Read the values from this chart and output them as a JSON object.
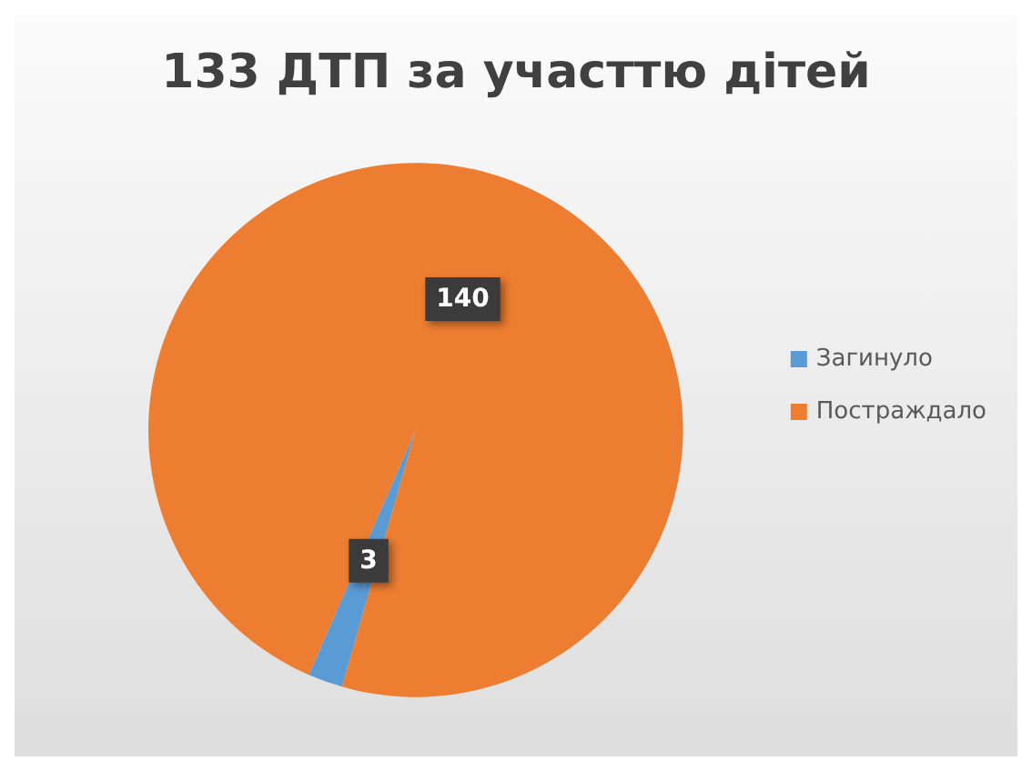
{
  "chart_data": {
    "type": "pie",
    "title": "133 ДТП за участтю дітей",
    "categories": [
      "Загинуло",
      "Постраждало"
    ],
    "values": [
      3,
      140
    ],
    "colors": [
      "#5b9bd5",
      "#ed7d31"
    ],
    "data_labels": true,
    "legend": "right"
  }
}
